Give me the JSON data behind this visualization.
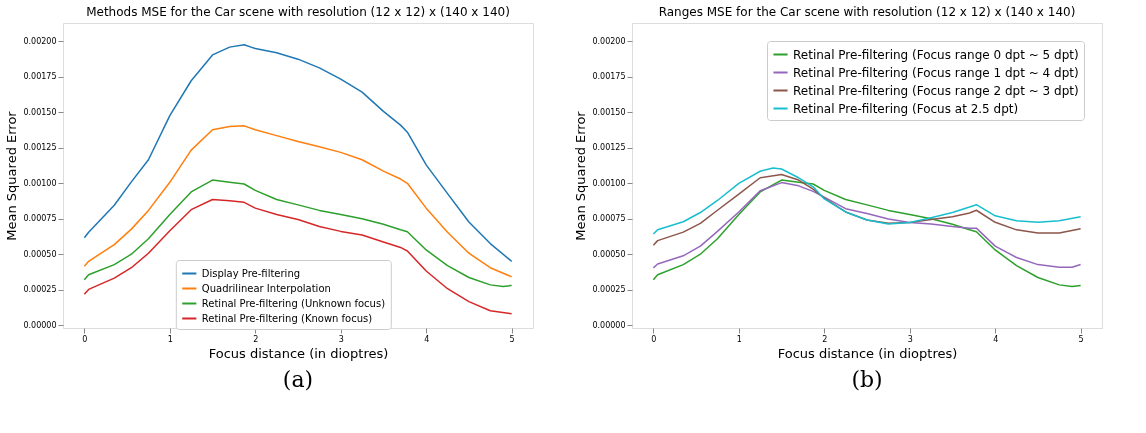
{
  "chart_data": [
    {
      "type": "line",
      "title": "Methods MSE for the Car scene with resolution (12 x 12) x (140 x 140)",
      "xlabel": "Focus distance (in dioptres)",
      "ylabel": "Mean Squared Error",
      "xlim": [
        -0.25,
        5.25
      ],
      "ylim": [
        -2e-05,
        0.00213
      ],
      "xticks": [
        0,
        1,
        2,
        3,
        4,
        5
      ],
      "yticks": [
        {
          "value": 0,
          "label": "0.00000"
        },
        {
          "value": 0.00025,
          "label": "0.00025"
        },
        {
          "value": 0.0005,
          "label": "0.00050"
        },
        {
          "value": 0.00075,
          "label": "0.00075"
        },
        {
          "value": 0.001,
          "label": "0.00100"
        },
        {
          "value": 0.00125,
          "label": "0.00125"
        },
        {
          "value": 0.0015,
          "label": "0.00150"
        },
        {
          "value": 0.00175,
          "label": "0.00175"
        },
        {
          "value": 0.002,
          "label": "0.00200"
        }
      ],
      "grid": false,
      "legend": "bottom",
      "line_style": "solid",
      "marker": "none",
      "annotations": [
        "(a)"
      ],
      "series": [
        {
          "name": "Display Pre-filtering",
          "color": "#1f77b4",
          "x": [
            0,
            0.05,
            0.35,
            0.55,
            0.75,
            1,
            1.25,
            1.5,
            1.7,
            1.87,
            1.95,
            2,
            2.25,
            2.5,
            2.75,
            3,
            3.25,
            3.5,
            3.7,
            3.78,
            4,
            4.25,
            4.5,
            4.75,
            5
          ],
          "values": [
            0.000616,
            0.000655,
            0.000845,
            0.00101,
            0.001166,
            0.001477,
            0.001723,
            0.001905,
            0.00196,
            0.001977,
            0.00196,
            0.00195,
            0.00192,
            0.001875,
            0.001814,
            0.001734,
            0.001643,
            0.001507,
            0.00141,
            0.00136,
            0.00113,
            0.000927,
            0.000727,
            0.000575,
            0.00045
          ]
        },
        {
          "name": "Quadrilinear Interpolation",
          "color": "#ff7f0e",
          "x": [
            0,
            0.05,
            0.35,
            0.55,
            0.75,
            1,
            1.25,
            1.5,
            1.7,
            1.87,
            2,
            2.25,
            2.5,
            2.75,
            3,
            3.25,
            3.5,
            3.7,
            3.78,
            4,
            4.25,
            4.5,
            4.75,
            5
          ],
          "values": [
            0.000416,
            0.00045,
            0.000568,
            0.000677,
            0.000809,
            0.001007,
            0.001234,
            0.001377,
            0.0014,
            0.001405,
            0.001377,
            0.001336,
            0.001295,
            0.001257,
            0.001218,
            0.001166,
            0.001086,
            0.00103,
            0.001,
            0.000825,
            0.000655,
            0.000507,
            0.000405,
            0.000341
          ]
        },
        {
          "name": "Retinal Pre-filtering (Unknown focus)",
          "color": "#2ca02c",
          "x": [
            0,
            0.05,
            0.35,
            0.55,
            0.75,
            1,
            1.25,
            1.5,
            1.7,
            1.87,
            2,
            2.25,
            2.5,
            2.75,
            3,
            3.25,
            3.5,
            3.7,
            3.78,
            4,
            4.25,
            4.5,
            4.75,
            4.9,
            5
          ],
          "values": [
            0.00032,
            0.000355,
            0.000427,
            0.0005,
            0.000609,
            0.00078,
            0.000939,
            0.001023,
            0.001007,
            0.000995,
            0.00095,
            0.000886,
            0.000848,
            0.000809,
            0.00078,
            0.00075,
            0.000711,
            0.000673,
            0.000659,
            0.00053,
            0.00042,
            0.000336,
            0.000284,
            0.000273,
            0.00028
          ]
        },
        {
          "name": "Retinal Pre-filtering (Known focus)",
          "color": "#d62728",
          "x": [
            0,
            0.05,
            0.35,
            0.55,
            0.75,
            1,
            1.25,
            1.5,
            1.7,
            1.87,
            2,
            2.25,
            2.5,
            2.75,
            3,
            3.25,
            3.5,
            3.7,
            3.78,
            4,
            4.25,
            4.5,
            4.75,
            5
          ],
          "values": [
            0.000218,
            0.000252,
            0.000332,
            0.000405,
            0.000507,
            0.000666,
            0.000814,
            0.000886,
            0.000877,
            0.000866,
            0.000825,
            0.00078,
            0.000745,
            0.000695,
            0.000661,
            0.000636,
            0.000586,
            0.000548,
            0.000523,
            0.000382,
            0.000257,
            0.000166,
            0.000102,
            8e-05
          ]
        }
      ]
    },
    {
      "type": "line",
      "title": "Ranges MSE for the Car scene with resolution (12 x 12) x (140 x 140)",
      "xlabel": "Focus distance (in dioptres)",
      "ylabel": "Mean Squared Error",
      "xlim": [
        -0.25,
        5.25
      ],
      "ylim": [
        -2e-05,
        0.00213
      ],
      "xticks": [
        0,
        1,
        2,
        3,
        4,
        5
      ],
      "yticks": [
        {
          "value": 0,
          "label": "0.00000"
        },
        {
          "value": 0.00025,
          "label": "0.00025"
        },
        {
          "value": 0.0005,
          "label": "0.00050"
        },
        {
          "value": 0.00075,
          "label": "0.00075"
        },
        {
          "value": 0.001,
          "label": "0.00100"
        },
        {
          "value": 0.00125,
          "label": "0.00125"
        },
        {
          "value": 0.0015,
          "label": "0.00150"
        },
        {
          "value": 0.00175,
          "label": "0.00175"
        },
        {
          "value": 0.002,
          "label": "0.00200"
        }
      ],
      "grid": false,
      "legend": "top right",
      "line_style": "solid",
      "marker": "none",
      "annotations": [
        "(b)"
      ],
      "series": [
        {
          "name": "Retinal Pre-filtering (Focus range 0 dpt ~ 5 dpt)",
          "color": "#2ca02c",
          "x": [
            0,
            0.05,
            0.35,
            0.55,
            0.75,
            1,
            1.25,
            1.5,
            1.7,
            1.87,
            2,
            2.25,
            2.5,
            2.75,
            3,
            3.25,
            3.5,
            3.7,
            3.78,
            4,
            4.25,
            4.5,
            4.75,
            4.9,
            5
          ],
          "values": [
            0.00032,
            0.000355,
            0.000427,
            0.0005,
            0.000609,
            0.00078,
            0.000939,
            0.001023,
            0.001007,
            0.000995,
            0.00095,
            0.000886,
            0.000848,
            0.000809,
            0.00078,
            0.00075,
            0.000711,
            0.000673,
            0.000659,
            0.00053,
            0.00042,
            0.000336,
            0.000284,
            0.000273,
            0.00028
          ]
        },
        {
          "name": "Retinal Pre-filtering (Focus range 1 dpt ~ 4 dpt)",
          "color": "#9467bd",
          "x": [
            0,
            0.05,
            0.35,
            0.55,
            0.75,
            1,
            1.25,
            1.5,
            1.7,
            1.87,
            2,
            2.25,
            2.5,
            2.75,
            3,
            3.25,
            3.5,
            3.7,
            3.78,
            4,
            4.25,
            4.5,
            4.75,
            4.9,
            5
          ],
          "values": [
            0.000404,
            0.000431,
            0.000489,
            0.000557,
            0.000661,
            0.000798,
            0.000947,
            0.001005,
            0.000982,
            0.000943,
            0.000902,
            0.000821,
            0.000787,
            0.000748,
            0.000723,
            0.000713,
            0.000695,
            0.000684,
            0.000684,
            0.000557,
            0.000477,
            0.000427,
            0.000408,
            0.000408,
            0.000427
          ]
        },
        {
          "name": "Retinal Pre-filtering (Focus range 2 dpt ~ 3 dpt)",
          "color": "#8c564b",
          "x": [
            0,
            0.05,
            0.35,
            0.55,
            0.75,
            1,
            1.25,
            1.5,
            1.7,
            1.87,
            2,
            2.25,
            2.5,
            2.75,
            3,
            3.25,
            3.5,
            3.7,
            3.78,
            4,
            4.25,
            4.5,
            4.75,
            5
          ],
          "values": [
            0.000564,
            0.000596,
            0.000656,
            0.000718,
            0.00081,
            0.000924,
            0.001039,
            0.001062,
            0.001023,
            0.000959,
            0.000895,
            0.000798,
            0.000741,
            0.000718,
            0.000723,
            0.000745,
            0.000764,
            0.000791,
            0.00081,
            0.000725,
            0.000672,
            0.000649,
            0.000649,
            0.000679
          ]
        },
        {
          "name": "Retinal Pre-filtering (Focus at 2.5 dpt)",
          "color": "#17becf",
          "x": [
            0,
            0.05,
            0.35,
            0.55,
            0.75,
            1,
            1.25,
            1.4,
            1.5,
            1.7,
            1.87,
            2,
            2.25,
            2.5,
            2.75,
            3,
            3.25,
            3.5,
            3.7,
            3.78,
            4,
            4.25,
            4.5,
            4.75,
            5
          ],
          "values": [
            0.000642,
            0.000672,
            0.000729,
            0.000794,
            0.000879,
            0.001,
            0.001085,
            0.001108,
            0.001101,
            0.001039,
            0.000975,
            0.00089,
            0.000798,
            0.000741,
            0.000713,
            0.000723,
            0.000757,
            0.000794,
            0.000833,
            0.000849,
            0.000771,
            0.000736,
            0.000725,
            0.000736,
            0.000764
          ]
        }
      ]
    }
  ]
}
